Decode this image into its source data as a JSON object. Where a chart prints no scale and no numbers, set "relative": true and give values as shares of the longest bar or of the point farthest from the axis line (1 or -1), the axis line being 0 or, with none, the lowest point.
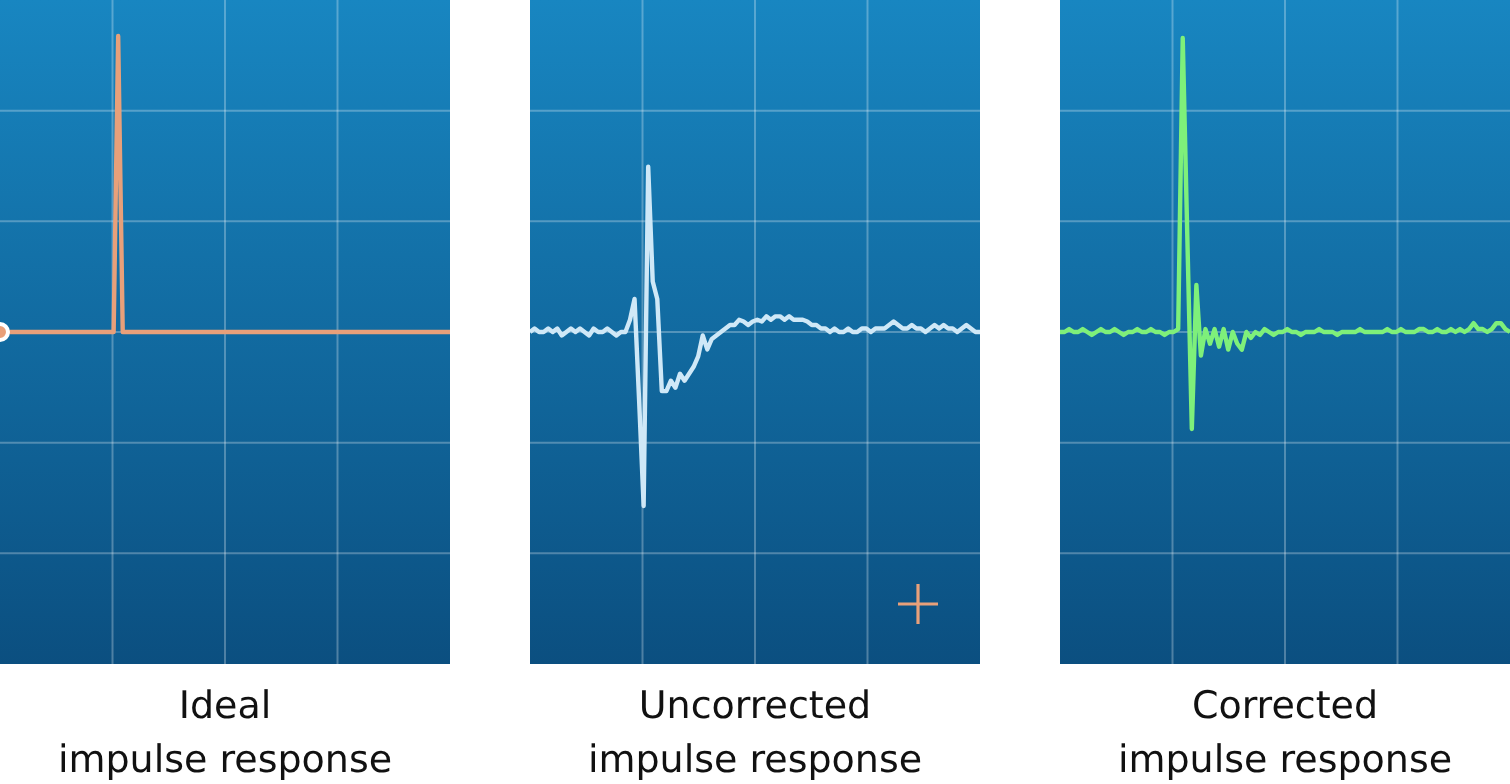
{
  "chart_data": [
    {
      "type": "line",
      "title": "Ideal\nimpulse response",
      "relative": true,
      "grid": true,
      "categories": [
        null,
        null,
        null,
        null,
        null,
        null,
        null,
        null,
        null,
        null,
        null,
        null,
        null,
        null,
        null,
        null,
        null,
        null,
        null,
        null,
        null,
        null,
        null,
        null,
        null,
        null,
        null,
        null,
        null,
        null,
        null,
        null,
        null,
        null,
        null,
        null,
        null,
        null,
        null,
        null,
        null,
        null,
        null,
        null,
        null,
        null,
        null,
        null,
        null,
        null,
        null,
        null,
        null,
        null,
        null,
        null,
        null,
        null,
        null,
        null,
        null,
        null,
        null,
        null,
        null,
        null,
        null,
        null,
        null,
        null,
        null,
        null,
        null,
        null,
        null,
        null,
        null,
        null,
        null,
        null,
        null,
        null,
        null,
        null,
        null,
        null,
        null,
        null,
        null,
        null,
        null,
        null,
        null,
        null,
        null,
        null,
        null,
        null,
        null,
        null
      ],
      "series": [
        {
          "color": "#e8a07a",
          "values": [
            0,
            0,
            0,
            0,
            0,
            0,
            0,
            0,
            0,
            0,
            0,
            0,
            0,
            0,
            0,
            0,
            0,
            0,
            0,
            0,
            0,
            0,
            0,
            0,
            0,
            0,
            1,
            0,
            0,
            0,
            0,
            0,
            0,
            0,
            0,
            0,
            0,
            0,
            0,
            0,
            0,
            0,
            0,
            0,
            0,
            0,
            0,
            0,
            0,
            0,
            0,
            0,
            0,
            0,
            0,
            0,
            0,
            0,
            0,
            0,
            0,
            0,
            0,
            0,
            0,
            0,
            0,
            0,
            0,
            0,
            0,
            0,
            0,
            0,
            0,
            0,
            0,
            0,
            0,
            0,
            0,
            0,
            0,
            0,
            0,
            0,
            0,
            0,
            0,
            0,
            0,
            0,
            0,
            0,
            0,
            0,
            0,
            0,
            0,
            0
          ]
        }
      ]
    },
    {
      "type": "line",
      "title": "Uncorrected\nimpulse response",
      "relative": true,
      "grid": true,
      "categories": [
        null,
        null,
        null,
        null,
        null,
        null,
        null,
        null,
        null,
        null,
        null,
        null,
        null,
        null,
        null,
        null,
        null,
        null,
        null,
        null,
        null,
        null,
        null,
        null,
        null,
        null,
        null,
        null,
        null,
        null,
        null,
        null,
        null,
        null,
        null,
        null,
        null,
        null,
        null,
        null,
        null,
        null,
        null,
        null,
        null,
        null,
        null,
        null,
        null,
        null,
        null,
        null,
        null,
        null,
        null,
        null,
        null,
        null,
        null,
        null,
        null,
        null,
        null,
        null,
        null,
        null,
        null,
        null,
        null,
        null,
        null,
        null,
        null,
        null,
        null,
        null,
        null,
        null,
        null,
        null,
        null,
        null,
        null,
        null,
        null,
        null,
        null,
        null,
        null,
        null,
        null,
        null,
        null,
        null,
        null,
        null,
        null,
        null,
        null,
        null
      ],
      "series": [
        {
          "color": "#cfe8f7",
          "values": [
            0,
            0.02,
            0,
            0,
            0.02,
            0,
            0.02,
            -0.02,
            0,
            0.02,
            0,
            0.02,
            0,
            -0.02,
            0.02,
            0,
            0,
            0.02,
            0,
            -0.02,
            0,
            0,
            0.07,
            0.19,
            -0.39,
            -1,
            0.95,
            0.29,
            0.19,
            -0.34,
            -0.34,
            -0.28,
            -0.32,
            -0.24,
            -0.28,
            -0.24,
            -0.2,
            -0.14,
            -0.02,
            -0.1,
            -0.04,
            -0.02,
            0,
            0.02,
            0.04,
            0.04,
            0.07,
            0.06,
            0.04,
            0.06,
            0.07,
            0.06,
            0.09,
            0.07,
            0.09,
            0.09,
            0.07,
            0.09,
            0.07,
            0.07,
            0.07,
            0.06,
            0.04,
            0.04,
            0.02,
            0.02,
            0,
            0.02,
            0,
            0,
            0.02,
            0,
            0,
            0.02,
            0.02,
            0,
            0.02,
            0.02,
            0.02,
            0.04,
            0.06,
            0.04,
            0.02,
            0.02,
            0.04,
            0.02,
            0.02,
            0,
            0.02,
            0.04,
            0.02,
            0.04,
            0.02,
            0.02,
            0,
            0.02,
            0.04,
            0.02,
            0,
            0
          ]
        }
      ]
    },
    {
      "type": "line",
      "title": "Corrected\nimpulse response",
      "relative": true,
      "grid": true,
      "categories": [
        null,
        null,
        null,
        null,
        null,
        null,
        null,
        null,
        null,
        null,
        null,
        null,
        null,
        null,
        null,
        null,
        null,
        null,
        null,
        null,
        null,
        null,
        null,
        null,
        null,
        null,
        null,
        null,
        null,
        null,
        null,
        null,
        null,
        null,
        null,
        null,
        null,
        null,
        null,
        null,
        null,
        null,
        null,
        null,
        null,
        null,
        null,
        null,
        null,
        null,
        null,
        null,
        null,
        null,
        null,
        null,
        null,
        null,
        null,
        null,
        null,
        null,
        null,
        null,
        null,
        null,
        null,
        null,
        null,
        null,
        null,
        null,
        null,
        null,
        null,
        null,
        null,
        null,
        null,
        null,
        null,
        null,
        null,
        null,
        null,
        null,
        null,
        null,
        null,
        null,
        null,
        null,
        null,
        null,
        null,
        null,
        null,
        null,
        null,
        null
      ],
      "series": [
        {
          "color": "#7ef07a",
          "values": [
            0,
            0,
            0.01,
            0,
            0,
            0.01,
            0,
            -0.01,
            0,
            0.01,
            0,
            0,
            0.01,
            0,
            -0.01,
            0,
            0,
            0.01,
            0,
            0,
            0.01,
            0,
            0,
            -0.01,
            0,
            0,
            0.01,
            1,
            0.33,
            -0.33,
            0.16,
            -0.08,
            0.01,
            -0.04,
            0.01,
            -0.05,
            0.01,
            -0.06,
            0,
            -0.04,
            -0.06,
            0,
            -0.02,
            0,
            -0.01,
            0.01,
            0,
            -0.01,
            0,
            0,
            0.01,
            0,
            0,
            -0.01,
            0,
            0,
            0,
            0.01,
            0,
            0,
            0,
            -0.01,
            0,
            0,
            0,
            0,
            0.01,
            0,
            0,
            0,
            0,
            0,
            0.01,
            0,
            0,
            0.01,
            0,
            0,
            0,
            0.01,
            0.01,
            0,
            0,
            0.01,
            0,
            0,
            0.01,
            0,
            0.01,
            0,
            0.01,
            0.03,
            0.01,
            0.01,
            0,
            0.01,
            0.03,
            0.03,
            0.01,
            0
          ]
        }
      ]
    }
  ]
}
